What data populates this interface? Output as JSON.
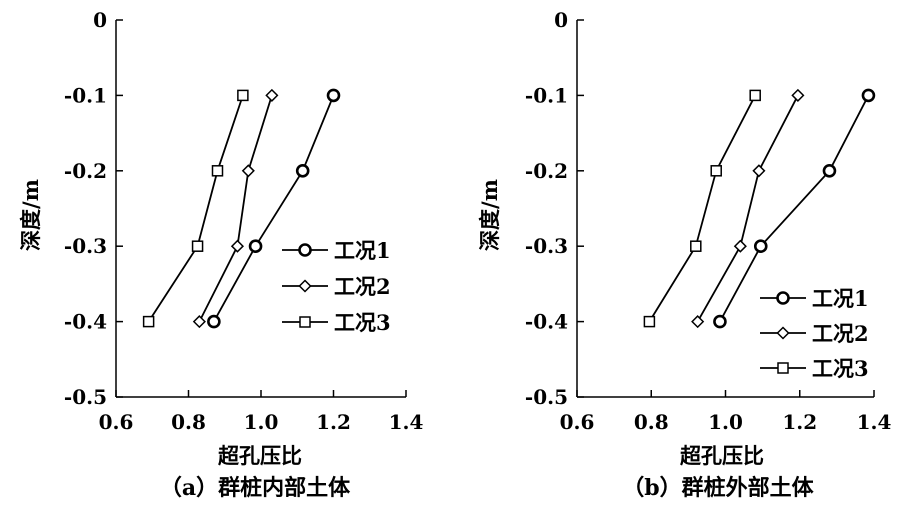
{
  "chart_data": [
    {
      "type": "line",
      "caption": "（a）群桩内部土体",
      "xlabel": "超孔压比",
      "ylabel": "深度/m",
      "xlim": [
        0.6,
        1.4
      ],
      "ylim": [
        -0.5,
        0
      ],
      "x_ticks": [
        "0.6",
        "0.8",
        "1.0",
        "1.2",
        "1.4"
      ],
      "y_ticks": [
        "0",
        "-0.1",
        "-0.2",
        "-0.3",
        "-0.4",
        "-0.5"
      ],
      "legend_position": "right-middle",
      "series": [
        {
          "name": "工况1",
          "marker": "circle",
          "x": [
            1.2,
            1.115,
            0.985,
            0.87
          ],
          "y": [
            -0.1,
            -0.2,
            -0.3,
            -0.4
          ]
        },
        {
          "name": "工况2",
          "marker": "diamond",
          "x": [
            1.03,
            0.965,
            0.935,
            0.83
          ],
          "y": [
            -0.1,
            -0.2,
            -0.3,
            -0.4
          ]
        },
        {
          "name": "工况3",
          "marker": "square",
          "x": [
            0.95,
            0.88,
            0.825,
            0.69
          ],
          "y": [
            -0.1,
            -0.2,
            -0.3,
            -0.4
          ]
        }
      ]
    },
    {
      "type": "line",
      "caption": "（b）群桩外部土体",
      "xlabel": "超孔压比",
      "ylabel": "深度/m",
      "xlim": [
        0.6,
        1.4
      ],
      "ylim": [
        -0.5,
        0
      ],
      "x_ticks": [
        "0.6",
        "0.8",
        "1.0",
        "1.2",
        "1.4"
      ],
      "y_ticks": [
        "0",
        "-0.1",
        "-0.2",
        "-0.3",
        "-0.4",
        "-0.5"
      ],
      "legend_position": "bottom-right",
      "series": [
        {
          "name": "工况1",
          "marker": "circle",
          "x": [
            1.385,
            1.28,
            1.095,
            0.985
          ],
          "y": [
            -0.1,
            -0.2,
            -0.3,
            -0.4
          ]
        },
        {
          "name": "工况2",
          "marker": "diamond",
          "x": [
            1.195,
            1.09,
            1.04,
            0.925
          ],
          "y": [
            -0.1,
            -0.2,
            -0.3,
            -0.4
          ]
        },
        {
          "name": "工况3",
          "marker": "square",
          "x": [
            1.08,
            0.975,
            0.92,
            0.795
          ],
          "y": [
            -0.1,
            -0.2,
            -0.3,
            -0.4
          ]
        }
      ]
    }
  ]
}
